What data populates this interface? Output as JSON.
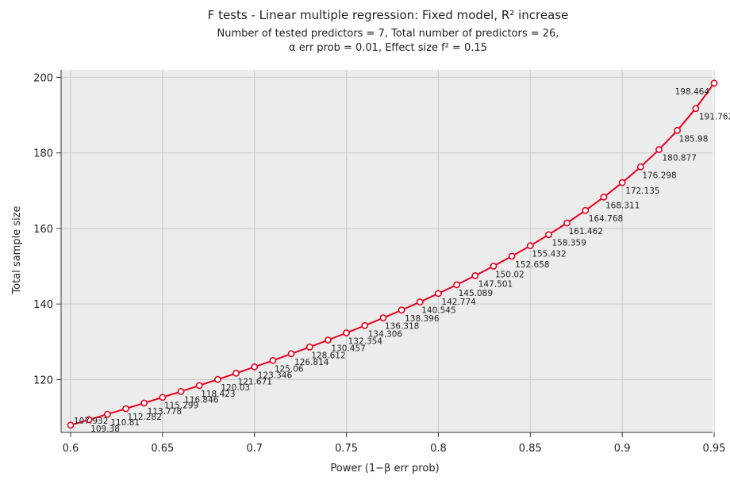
{
  "chart_data": {
    "type": "line",
    "title": "F tests - Linear multiple regression: Fixed model, R² increase",
    "subtitle_lines": [
      "Number of tested predictors = 7, Total number of predictors = 26,",
      "α err prob = 0.01, Effect size f² = 0.15"
    ],
    "xlabel": "Power (1−β err prob)",
    "ylabel": "Total sample size",
    "xlim": [
      0.6,
      0.95
    ],
    "ylim": [
      106,
      202
    ],
    "x_ticks": [
      "0.6",
      "0.65",
      "0.7",
      "0.75",
      "0.8",
      "0.85",
      "0.9",
      "0.95"
    ],
    "y_ticks": [
      "120",
      "140",
      "160",
      "180",
      "200"
    ],
    "grid": true,
    "series_color": "#e8001c",
    "grid_color": "#c8c8c8",
    "plot_background": "#ececec",
    "series": [
      {
        "x": [
          0.6,
          0.61,
          0.62,
          0.63,
          0.64,
          0.65,
          0.66,
          0.67,
          0.68,
          0.69,
          0.7,
          0.71,
          0.72,
          0.73,
          0.74,
          0.75,
          0.76,
          0.77,
          0.78,
          0.79,
          0.8,
          0.81,
          0.82,
          0.83,
          0.84,
          0.85,
          0.86,
          0.87,
          0.88,
          0.89,
          0.9,
          0.91,
          0.92,
          0.93,
          0.94,
          0.95
        ],
        "values": [
          107.932,
          109.38,
          110.81,
          112.282,
          113.778,
          115.299,
          116.846,
          118.423,
          120.03,
          121.671,
          123.346,
          125.06,
          126.814,
          128.612,
          130.457,
          132.354,
          134.306,
          136.318,
          138.396,
          140.545,
          142.774,
          145.089,
          147.501,
          150.02,
          152.658,
          155.432,
          158.359,
          161.462,
          164.768,
          168.311,
          172.135,
          176.298,
          180.877,
          185.98,
          191.762,
          198.464
        ],
        "labels": [
          "107.932",
          "109.38",
          "110.81",
          "112.282",
          "113.778",
          "115.299",
          "116.846",
          "118.423",
          "120.03",
          "121.671",
          "123.346",
          "125.06",
          "126.814",
          "128.612",
          "130.457",
          "132.354",
          "134.306",
          "136.318",
          "138.396",
          "140.545",
          "142.774",
          "145.089",
          "147.501",
          "150.02",
          "152.658",
          "155.432",
          "158.359",
          "161.462",
          "164.768",
          "168.311",
          "172.135",
          "176.298",
          "180.877",
          "185.98",
          "191.762",
          "198.464"
        ]
      }
    ]
  }
}
